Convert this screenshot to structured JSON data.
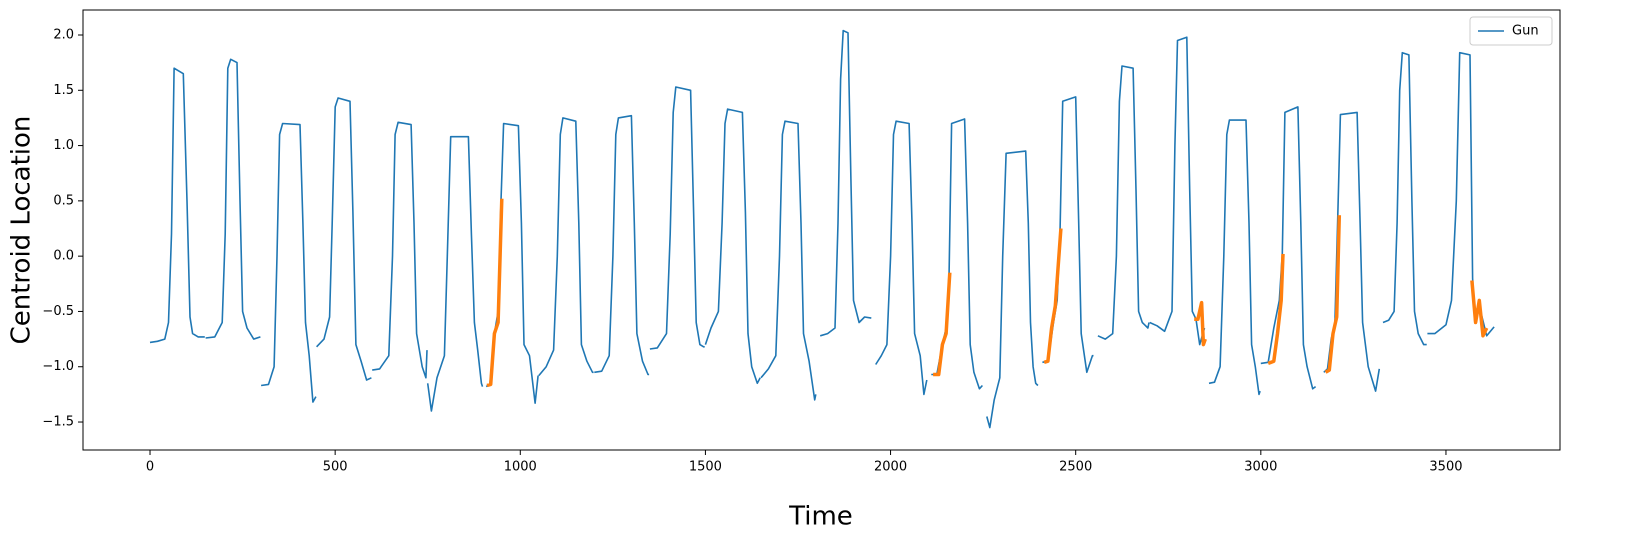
{
  "chart_data": {
    "type": "line",
    "xlabel": "Time",
    "ylabel": "Centroid Location",
    "xlim": [
      -181,
      3808
    ],
    "ylim": [
      -1.753,
      2.226
    ],
    "xticks": [
      0,
      500,
      1000,
      1500,
      2000,
      2500,
      3000,
      3500
    ],
    "yticks": [
      {
        "value": -1.5,
        "label": "−1.5"
      },
      {
        "value": -1.0,
        "label": "−1.0"
      },
      {
        "value": -0.5,
        "label": "−0.5"
      },
      {
        "value": 0.0,
        "label": "0.0"
      },
      {
        "value": 0.5,
        "label": "0.5"
      },
      {
        "value": 1.0,
        "label": "1.0"
      },
      {
        "value": 1.5,
        "label": "1.5"
      },
      {
        "value": 2.0,
        "label": "2.0"
      }
    ],
    "legend": "upper right",
    "series": [
      {
        "name": "Gun",
        "color": "#1f77b4",
        "width": 1.6,
        "x": [
          0,
          20,
          40,
          50,
          58,
          65,
          90,
          100,
          108,
          115,
          130,
          148,
          null,
          150,
          175,
          195,
          203,
          210,
          218,
          235,
          243,
          250,
          262,
          280,
          298,
          null,
          300,
          320,
          335,
          343,
          350,
          358,
          405,
          413,
          420,
          430,
          440,
          448,
          null,
          450,
          470,
          485,
          492,
          500,
          508,
          540,
          548,
          556,
          570,
          585,
          598,
          null,
          600,
          620,
          645,
          655,
          662,
          670,
          705,
          713,
          720,
          735,
          745,
          748,
          null,
          750,
          760,
          775,
          795,
          803,
          812,
          860,
          868,
          876,
          885,
          895,
          898,
          null,
          908,
          918,
          930,
          940,
          948,
          955,
          995,
          1003,
          1010,
          1025,
          1040,
          1048,
          null,
          1050,
          1070,
          1090,
          1100,
          1108,
          1115,
          1150,
          1158,
          1165,
          1180,
          1195,
          1198,
          null,
          1200,
          1220,
          1240,
          1250,
          1258,
          1265,
          1300,
          1308,
          1315,
          1330,
          1345,
          1348,
          null,
          1350,
          1370,
          1395,
          1405,
          1413,
          1420,
          1460,
          1468,
          1475,
          1485,
          1495,
          1498,
          null,
          1500,
          1515,
          1535,
          1545,
          1553,
          1560,
          1600,
          1608,
          1615,
          1625,
          1640,
          1648,
          null,
          1650,
          1670,
          1690,
          1700,
          1708,
          1715,
          1750,
          1758,
          1765,
          1780,
          1795,
          1798,
          null,
          1810,
          1830,
          1850,
          1858,
          1865,
          1872,
          1885,
          1893,
          1900,
          1915,
          1930,
          1948,
          null,
          1960,
          1975,
          1990,
          2000,
          2008,
          2015,
          2050,
          2058,
          2065,
          2080,
          2090,
          2098,
          null,
          2110,
          2125,
          2140,
          2150,
          2158,
          2165,
          2200,
          2208,
          2215,
          2225,
          2240,
          2248,
          null,
          2260,
          2268,
          2280,
          2295,
          2303,
          2312,
          2365,
          2372,
          2378,
          2385,
          2392,
          2398,
          null,
          2410,
          2425,
          2440,
          2450,
          2458,
          2465,
          2500,
          2508,
          2515,
          2530,
          2545,
          2548,
          null,
          2560,
          2580,
          2600,
          2610,
          2618,
          2625,
          2655,
          2663,
          2670,
          2680,
          2695,
          2698,
          null,
          2700,
          2720,
          2740,
          2760,
          2768,
          2775,
          2800,
          2808,
          2815,
          2825,
          2835,
          2848,
          null,
          2860,
          2875,
          2890,
          2900,
          2908,
          2915,
          2960,
          2968,
          2975,
          2985,
          2995,
          2998,
          null,
          3000,
          3020,
          3035,
          3050,
          3058,
          3065,
          3100,
          3108,
          3115,
          3125,
          3140,
          3148,
          null,
          3170,
          3180,
          3190,
          3200,
          3208,
          3215,
          3260,
          3268,
          3275,
          3290,
          3310,
          3320,
          null,
          3330,
          3345,
          3360,
          3368,
          3375,
          3382,
          3400,
          3408,
          3415,
          3425,
          3440,
          3448,
          null,
          3450,
          3470,
          3500,
          3515,
          3528,
          3537,
          3565,
          3572,
          3578,
          3590,
          3610,
          3630
        ],
        "values": [
          -0.78,
          -0.77,
          -0.75,
          -0.6,
          0.2,
          1.7,
          1.65,
          0.5,
          -0.55,
          -0.7,
          -0.73,
          -0.73,
          null,
          -0.74,
          -0.73,
          -0.6,
          0.2,
          1.7,
          1.78,
          1.75,
          0.5,
          -0.5,
          -0.65,
          -0.75,
          -0.73,
          null,
          -1.17,
          -1.16,
          -1.0,
          0,
          1.1,
          1.2,
          1.19,
          0.3,
          -0.6,
          -0.9,
          -1.32,
          -1.27,
          null,
          -0.82,
          -0.75,
          -0.55,
          0.3,
          1.35,
          1.43,
          1.4,
          0.4,
          -0.8,
          -0.95,
          -1.12,
          -1.1,
          null,
          -1.03,
          -1.02,
          -0.9,
          0,
          1.1,
          1.21,
          1.19,
          0.3,
          -0.7,
          -1.0,
          -1.1,
          -0.85,
          null,
          -1.15,
          -1.4,
          -1.1,
          -0.9,
          0,
          1.08,
          1.08,
          0.2,
          -0.6,
          -0.85,
          -1.15,
          -1.18,
          null,
          -1.18,
          -1.16,
          -0.7,
          -0.5,
          0.5,
          1.2,
          1.18,
          0.3,
          -0.8,
          -0.9,
          -1.33,
          -1.08,
          null,
          -1.08,
          -1.0,
          -0.85,
          0,
          1.1,
          1.25,
          1.22,
          0.3,
          -0.8,
          -0.95,
          -1.05,
          -1.05,
          null,
          -1.05,
          -1.04,
          -0.9,
          0,
          1.1,
          1.25,
          1.27,
          0.3,
          -0.7,
          -0.95,
          -1.07,
          -1.07,
          null,
          -0.84,
          -0.83,
          -0.7,
          0.2,
          1.3,
          1.53,
          1.5,
          0.4,
          -0.6,
          -0.8,
          -0.82,
          -0.82,
          null,
          -0.8,
          -0.65,
          -0.5,
          0.3,
          1.2,
          1.33,
          1.3,
          0.4,
          -0.7,
          -1.0,
          -1.15,
          -1.1,
          null,
          -1.1,
          -1.02,
          -0.9,
          0,
          1.1,
          1.22,
          1.2,
          0.3,
          -0.7,
          -0.95,
          -1.3,
          -1.25,
          null,
          -0.72,
          -0.7,
          -0.65,
          0.3,
          1.6,
          2.04,
          2.02,
          0.7,
          -0.4,
          -0.6,
          -0.55,
          -0.56,
          null,
          -0.98,
          -0.9,
          -0.8,
          0,
          1.1,
          1.22,
          1.2,
          0.3,
          -0.7,
          -0.9,
          -1.25,
          -1.12,
          null,
          -1.07,
          -1.07,
          -0.8,
          -0.65,
          -0.15,
          1.2,
          1.24,
          0.3,
          -0.8,
          -1.05,
          -1.2,
          -1.17,
          null,
          -1.45,
          -1.55,
          -1.3,
          -1.1,
          0,
          0.93,
          0.95,
          0.3,
          -0.6,
          -1.0,
          -1.15,
          -1.17,
          null,
          -0.96,
          -0.95,
          -0.6,
          -0.4,
          0.25,
          1.4,
          1.44,
          0.3,
          -0.7,
          -1.05,
          -0.9,
          -0.9,
          null,
          -0.72,
          -0.75,
          -0.7,
          0,
          1.4,
          1.72,
          1.7,
          0.6,
          -0.5,
          -0.6,
          -0.65,
          -0.6,
          null,
          -0.6,
          -0.63,
          -0.68,
          -0.5,
          1.0,
          1.95,
          1.98,
          0.6,
          -0.5,
          -0.57,
          -0.8,
          -0.65,
          null,
          -1.15,
          -1.14,
          -1.0,
          0,
          1.1,
          1.23,
          1.23,
          0.3,
          -0.8,
          -1.0,
          -1.25,
          -1.22,
          null,
          -0.97,
          -0.96,
          -0.65,
          -0.4,
          0.02,
          1.3,
          1.35,
          0.3,
          -0.8,
          -1.0,
          -1.2,
          -1.18,
          null,
          -1.05,
          -1.02,
          -0.75,
          -0.6,
          0.37,
          1.28,
          1.3,
          0.3,
          -0.6,
          -1.0,
          -1.22,
          -1.02,
          null,
          -0.6,
          -0.58,
          -0.5,
          0.3,
          1.5,
          1.84,
          1.82,
          0.5,
          -0.5,
          -0.7,
          -0.8,
          -0.8,
          null,
          -0.7,
          -0.7,
          -0.62,
          -0.4,
          0.5,
          1.84,
          1.82,
          -0.2,
          -0.6,
          -0.45,
          -0.72,
          -0.64
        ]
      },
      {
        "color": "#ff7f0e",
        "width": 3.5,
        "x": [
          910,
          920,
          930,
          940,
          950,
          null,
          2115,
          2130,
          2140,
          2150,
          2160,
          null,
          2415,
          2425,
          2435,
          2445,
          2460,
          null,
          2820,
          2830,
          2840,
          2845,
          2850,
          null,
          3020,
          3035,
          3045,
          3055,
          3060,
          null,
          3175,
          3185,
          3195,
          3205,
          3212,
          null,
          3570,
          3580,
          3590,
          3600,
          3610
        ],
        "values": [
          -1.17,
          -1.16,
          -0.7,
          -0.6,
          0.52,
          null,
          -1.07,
          -1.07,
          -0.8,
          -0.7,
          -0.15,
          null,
          -0.96,
          -0.95,
          -0.65,
          -0.45,
          0.25,
          null,
          -0.57,
          -0.57,
          -0.42,
          -0.8,
          -0.75,
          null,
          -0.97,
          -0.95,
          -0.7,
          -0.4,
          0.02,
          null,
          -1.05,
          -1.03,
          -0.7,
          -0.55,
          0.37,
          null,
          -0.22,
          -0.6,
          -0.4,
          -0.72,
          -0.65
        ]
      }
    ]
  }
}
